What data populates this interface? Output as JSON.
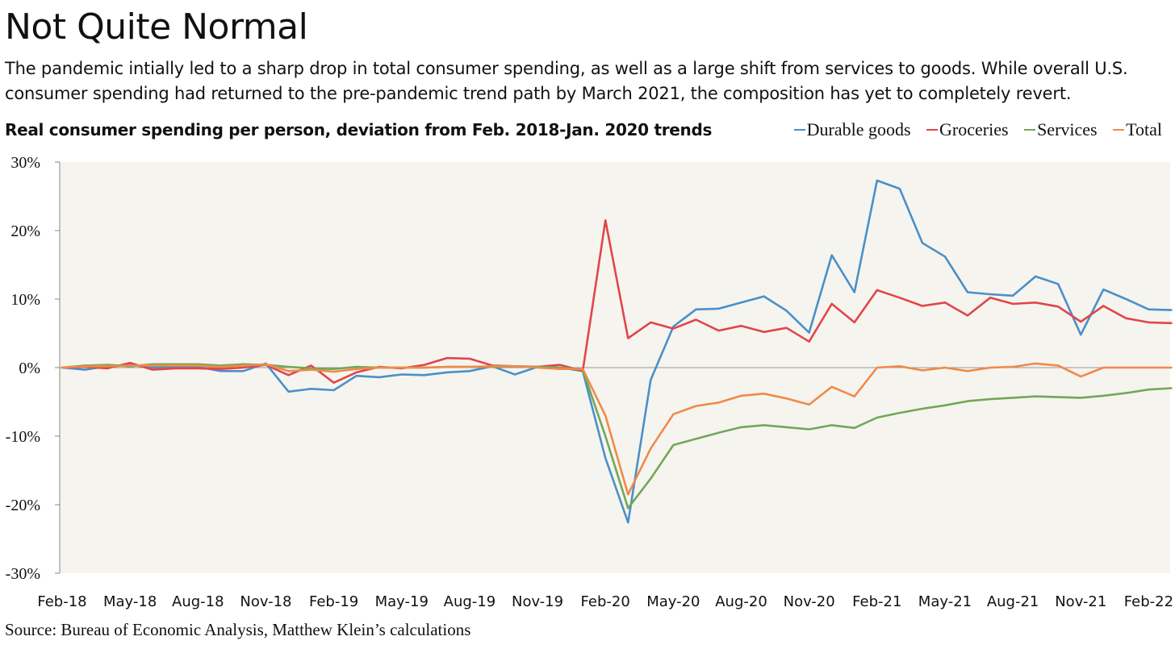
{
  "title": "Not Quite Normal",
  "subtitle": "The pandemic intially led to a sharp drop in total consumer spending, as well as a large shift from services to goods. While overall U.S. consumer spending had returned to the pre-pandemic trend path by March 2021, the composition has yet to completely revert.",
  "source": "Source: Bureau of Economic Analysis, Matthew Klein’s calculations",
  "chart_data": {
    "type": "line",
    "title": "Real consumer spending per person, deviation from Feb. 2018-Jan. 2020 trends",
    "xlabel": "",
    "ylabel": "",
    "ylim": [
      -30,
      30
    ],
    "yticks": [
      30,
      20,
      10,
      0,
      -10,
      -20,
      -30
    ],
    "ytick_labels": [
      "30%",
      "20%",
      "10%",
      "0%",
      "-10%",
      "-20%",
      "-30%"
    ],
    "xtick_labels": [
      "Feb-18",
      "May-18",
      "Aug-18",
      "Nov-18",
      "Feb-19",
      "May-19",
      "Aug-19",
      "Nov-19",
      "Feb-20",
      "May-20",
      "Aug-20",
      "Nov-20",
      "Feb-21",
      "May-21",
      "Aug-21",
      "Nov-21",
      "Feb-22"
    ],
    "legend_position": "top-right",
    "grid": false,
    "x": [
      "Feb-18",
      "Mar-18",
      "Apr-18",
      "May-18",
      "Jun-18",
      "Jul-18",
      "Aug-18",
      "Sep-18",
      "Oct-18",
      "Nov-18",
      "Dec-18",
      "Jan-19",
      "Feb-19",
      "Mar-19",
      "Apr-19",
      "May-19",
      "Jun-19",
      "Jul-19",
      "Aug-19",
      "Sep-19",
      "Oct-19",
      "Nov-19",
      "Dec-19",
      "Jan-20",
      "Feb-20",
      "Mar-20",
      "Apr-20",
      "May-20",
      "Jun-20",
      "Jul-20",
      "Aug-20",
      "Sep-20",
      "Oct-20",
      "Nov-20",
      "Dec-20",
      "Jan-21",
      "Feb-21",
      "Mar-21",
      "Apr-21",
      "May-21",
      "Jun-21",
      "Jul-21",
      "Aug-21",
      "Sep-21",
      "Oct-21",
      "Nov-21",
      "Dec-21",
      "Jan-22",
      "Feb-22",
      "Mar-22"
    ],
    "series": [
      {
        "name": "Durable goods",
        "color": "#4a90c8",
        "values": [
          0,
          -0.3,
          0.2,
          0.4,
          0,
          0.1,
          0.1,
          -0.5,
          -0.5,
          0.6,
          -3.5,
          -3.1,
          -3.3,
          -1.2,
          -1.4,
          -1.0,
          -1.1,
          -0.7,
          -0.5,
          0.2,
          -1.0,
          0.1,
          0,
          -0.5,
          -13.2,
          -22.6,
          -1.8,
          6.0,
          8.5,
          8.6,
          9.5,
          10.4,
          8.3,
          5.1,
          16.4,
          11.0,
          27.3,
          26.1,
          18.2,
          16.2,
          11.0,
          10.7,
          10.5,
          13.3,
          12.2,
          4.8,
          11.4,
          10.0,
          8.5,
          8.4
        ]
      },
      {
        "name": "Groceries",
        "color": "#e0464a",
        "values": [
          0,
          0.1,
          -0.1,
          0.7,
          -0.3,
          -0.1,
          -0.1,
          -0.2,
          0,
          0.4,
          -1.1,
          0.3,
          -2.2,
          -0.7,
          0.1,
          -0.1,
          0.4,
          1.4,
          1.3,
          0.3,
          0.2,
          0.1,
          0.4,
          -0.5,
          21.5,
          4.3,
          6.6,
          5.7,
          7.0,
          5.4,
          6.1,
          5.2,
          5.8,
          3.8,
          9.3,
          6.6,
          11.3,
          10.2,
          9.0,
          9.5,
          7.6,
          10.2,
          9.3,
          9.5,
          8.9,
          6.7,
          9.0,
          7.2,
          6.6,
          6.5
        ]
      },
      {
        "name": "Services",
        "color": "#72a858",
        "values": [
          0,
          0.3,
          0.4,
          0.2,
          0.5,
          0.5,
          0.5,
          0.3,
          0.5,
          0.4,
          0.1,
          -0.1,
          -0.2,
          0.1,
          0,
          0,
          0,
          0.1,
          0.1,
          0.1,
          0.1,
          0.1,
          0,
          -0.3,
          -10.0,
          -20.5,
          -16.2,
          -11.3,
          -10.4,
          -9.5,
          -8.7,
          -8.4,
          -8.7,
          -9.0,
          -8.4,
          -8.8,
          -7.3,
          -6.6,
          -6.0,
          -5.5,
          -4.9,
          -4.6,
          -4.4,
          -4.2,
          -4.3,
          -4.4,
          -4.1,
          -3.7,
          -3.2,
          -3.0
        ]
      },
      {
        "name": "Total",
        "color": "#ef8a4a",
        "values": [
          0,
          0.2,
          0.2,
          0.3,
          0.3,
          0.3,
          0.3,
          0.1,
          0.3,
          0.5,
          -0.5,
          -0.3,
          -0.6,
          -0.2,
          0,
          0,
          0,
          0.1,
          0.1,
          0.2,
          0.2,
          0,
          -0.2,
          -0.2,
          -7.0,
          -18.5,
          -11.8,
          -6.8,
          -5.6,
          -5.1,
          -4.1,
          -3.8,
          -4.5,
          -5.4,
          -2.8,
          -4.2,
          0,
          0.2,
          -0.4,
          0,
          -0.5,
          0,
          0.1,
          0.6,
          0.3,
          -1.3,
          0,
          0,
          0,
          0
        ]
      }
    ]
  }
}
